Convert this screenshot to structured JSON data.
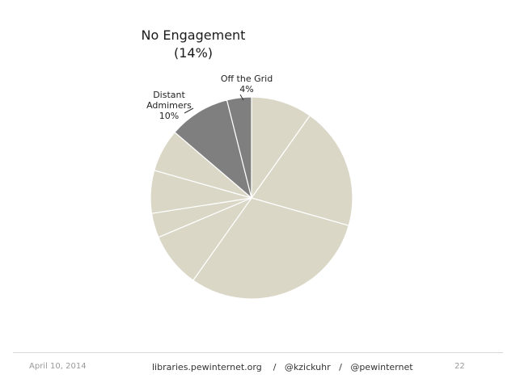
{
  "chart_data": {
    "type": "pie",
    "title_line1": "No Engagement",
    "title_line2": "(14%)",
    "slices": [
      {
        "value": 10,
        "color": "#dad7c7",
        "label": ""
      },
      {
        "value": 20,
        "color": "#dad7c7",
        "label": ""
      },
      {
        "value": 31,
        "color": "#dad7c7",
        "label": ""
      },
      {
        "value": 9,
        "color": "#dad7c7",
        "label": ""
      },
      {
        "value": 4,
        "color": "#dad7c7",
        "label": ""
      },
      {
        "value": 7,
        "color": "#dad7c7",
        "label": ""
      },
      {
        "value": 7,
        "color": "#dad7c7",
        "label": ""
      },
      {
        "value": 10,
        "color": "#7f7f7f",
        "label": "Distant Admimers",
        "pct": "10%"
      },
      {
        "value": 4,
        "color": "#7f7f7f",
        "label": "Off the Grid",
        "pct": "4%"
      }
    ],
    "labels": {
      "distant_line1": "Distant",
      "distant_line2": "Admimers",
      "distant_pct": "10%",
      "offgrid_line1": "Off the Grid",
      "offgrid_pct": "4%"
    }
  },
  "footer": {
    "date": "April 10, 2014",
    "center": "libraries.pewinternet.org    /   @kzickuhr   /   @pewinternet",
    "page": "22"
  },
  "colors": {
    "light": "#dad7c7",
    "dark": "#7f7f7f",
    "stroke": "#ffffff"
  }
}
